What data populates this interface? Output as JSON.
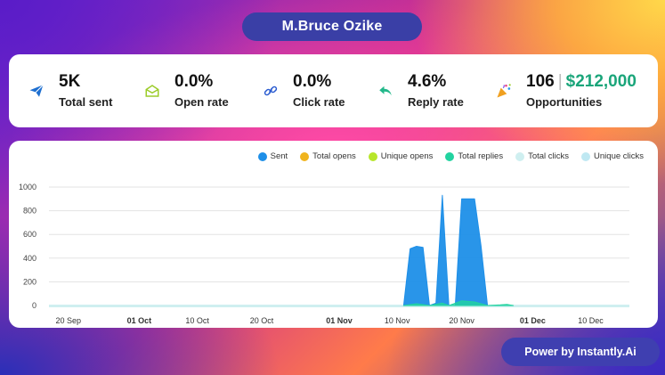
{
  "header": {
    "title": "M.Bruce Ozike"
  },
  "stats": [
    {
      "value": "5K",
      "label": "Total sent",
      "icon": "paper-plane-icon"
    },
    {
      "value": "0.0%",
      "label": "Open rate",
      "icon": "envelope-open-icon"
    },
    {
      "value": "0.0%",
      "label": "Click rate",
      "icon": "link-icon"
    },
    {
      "value": "4.6%",
      "label": "Reply rate",
      "icon": "reply-arrow-icon"
    },
    {
      "value": "106",
      "value_secondary": "$212,000",
      "label": "Opportunities",
      "icon": "party-popper-icon"
    }
  ],
  "colors": {
    "sent": "#1e8fe8",
    "total_opens": "#f0b41e",
    "unique_opens": "#b7e62a",
    "total_replies": "#22d3a0",
    "total_clicks": "#cfeff0",
    "unique_clicks": "#bfe8f2",
    "money": "#1aa57a"
  },
  "chart_data": {
    "type": "area",
    "ylim": [
      0,
      1000
    ],
    "y_ticks": [
      "0",
      "200",
      "400",
      "600",
      "800",
      "1000"
    ],
    "x_ticks": [
      {
        "label": "20 Sep",
        "bold": false
      },
      {
        "label": "01 Oct",
        "bold": true
      },
      {
        "label": "10 Oct",
        "bold": false
      },
      {
        "label": "20 Oct",
        "bold": false
      },
      {
        "label": "01 Nov",
        "bold": true
      },
      {
        "label": "10 Nov",
        "bold": false
      },
      {
        "label": "20 Nov",
        "bold": false
      },
      {
        "label": "01 Dec",
        "bold": true
      },
      {
        "label": "10 Dec",
        "bold": false
      }
    ],
    "x_range": [
      "2024-09-17",
      "2024-12-16"
    ],
    "series": [
      {
        "name": "Sent",
        "points": [
          [
            "2024-11-11",
            0
          ],
          [
            "2024-11-12",
            480
          ],
          [
            "2024-11-13",
            500
          ],
          [
            "2024-11-14",
            490
          ],
          [
            "2024-11-15",
            0
          ],
          [
            "2024-11-16",
            20
          ],
          [
            "2024-11-17",
            930
          ],
          [
            "2024-11-18",
            0
          ],
          [
            "2024-11-19",
            0
          ],
          [
            "2024-11-20",
            900
          ],
          [
            "2024-11-21",
            900
          ],
          [
            "2024-11-22",
            900
          ],
          [
            "2024-11-23",
            500
          ],
          [
            "2024-11-24",
            0
          ]
        ]
      },
      {
        "name": "Total opens",
        "points": []
      },
      {
        "name": "Unique opens",
        "points": []
      },
      {
        "name": "Total replies",
        "points": [
          [
            "2024-11-11",
            0
          ],
          [
            "2024-11-13",
            15
          ],
          [
            "2024-11-15",
            0
          ],
          [
            "2024-11-17",
            20
          ],
          [
            "2024-11-18",
            0
          ],
          [
            "2024-11-20",
            40
          ],
          [
            "2024-11-22",
            30
          ],
          [
            "2024-11-24",
            0
          ],
          [
            "2024-11-26",
            5
          ],
          [
            "2024-11-27",
            10
          ],
          [
            "2024-11-28",
            0
          ]
        ]
      },
      {
        "name": "Total clicks",
        "points": []
      },
      {
        "name": "Unique clicks",
        "points": []
      }
    ]
  },
  "footer": {
    "text": "Power by Instantly.Ai"
  }
}
